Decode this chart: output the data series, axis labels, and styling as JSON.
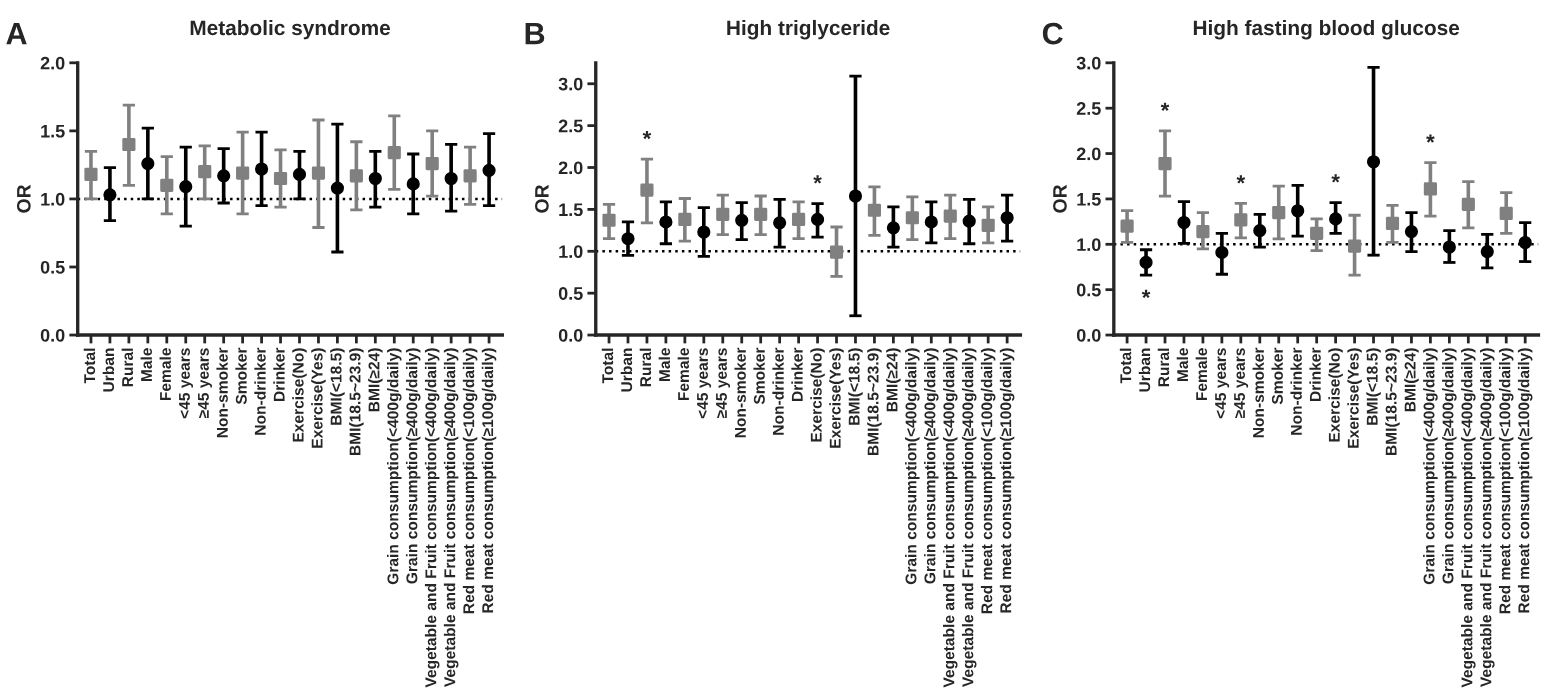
{
  "chart_data": [
    {
      "type": "scatter",
      "title": "Metabolic syndrome",
      "ylabel": "OR",
      "annotations": [
        "A"
      ],
      "categories": [
        "Total",
        "Urban",
        "Rural",
        "Male",
        "Female",
        "<45 years",
        "≥45 years",
        "Non-smoker",
        "Smoker",
        "Non-drinker",
        "Drinker",
        "Exercise(No)",
        "Exercise(Yes)",
        "BMI(<18.5)",
        "BMI(18.5~23.9)",
        "BMI(≥24)",
        "Grain consumption(<400g/daily)",
        "Grain consumption(≥400g/daily)",
        "Vegetable and Fruit consumption(<400g/daily)",
        "Vegetable and Fruit consumption(≥400g/daily)",
        "Red meat consumption(<100g/daily)",
        "Red meat consumption(≥100g/daily)"
      ],
      "series": [
        {
          "color": "#808080",
          "marker": "square",
          "values": [
            1.18,
            null,
            1.4,
            null,
            1.1,
            null,
            1.2,
            null,
            1.19,
            null,
            1.15,
            null,
            1.19,
            null,
            1.17,
            null,
            1.34,
            null,
            1.26,
            null,
            1.17,
            null
          ],
          "errors": [
            [
              1.0,
              1.35
            ],
            null,
            [
              1.1,
              1.69
            ],
            null,
            [
              0.89,
              1.31
            ],
            null,
            [
              1.0,
              1.39
            ],
            null,
            [
              0.89,
              1.49
            ],
            null,
            [
              0.94,
              1.36
            ],
            null,
            [
              0.79,
              1.58
            ],
            null,
            [
              0.92,
              1.42
            ],
            null,
            [
              1.07,
              1.61
            ],
            null,
            [
              1.02,
              1.5
            ],
            null,
            [
              0.96,
              1.38
            ],
            null
          ]
        },
        {
          "color": "#000000",
          "marker": "circle",
          "values": [
            null,
            1.03,
            null,
            1.26,
            null,
            1.09,
            null,
            1.17,
            null,
            1.22,
            null,
            1.18,
            null,
            1.08,
            null,
            1.15,
            null,
            1.11,
            null,
            1.15,
            null,
            1.21
          ],
          "errors": [
            null,
            [
              0.84,
              1.23
            ],
            null,
            [
              1.0,
              1.52
            ],
            null,
            [
              0.8,
              1.38
            ],
            null,
            [
              0.97,
              1.37
            ],
            null,
            [
              0.95,
              1.49
            ],
            null,
            [
              1.0,
              1.35
            ],
            null,
            [
              0.61,
              1.55
            ],
            null,
            [
              0.94,
              1.35
            ],
            null,
            [
              0.89,
              1.33
            ],
            null,
            [
              0.91,
              1.4
            ],
            null,
            [
              0.95,
              1.48
            ]
          ]
        }
      ],
      "ylim": [
        0,
        2
      ],
      "yticks": [
        {
          "value": 0,
          "label": "0.0"
        },
        {
          "value": 0.5,
          "label": "0.5"
        },
        {
          "value": 1,
          "label": "1.0"
        },
        {
          "value": 1.5,
          "label": "1.5"
        },
        {
          "value": 2,
          "label": "2.0"
        }
      ],
      "ref_lines": [
        {
          "axis": "y",
          "value": 1,
          "line_style": "dotted",
          "color": "#000000"
        }
      ],
      "grid": false
    },
    {
      "type": "scatter",
      "title": "High triglyceride",
      "ylabel": "OR",
      "annotations": [
        "B"
      ],
      "categories": [
        "Total",
        "Urban",
        "Rural",
        "Male",
        "Female",
        "<45 years",
        "≥45 years",
        "Non-smoker",
        "Smoker",
        "Non-drinker",
        "Drinker",
        "Exercise(No)",
        "Exercise(Yes)",
        "BMI(<18.5)",
        "BMI(18.5~23.9)",
        "BMI(≥24)",
        "Grain consumption(<400g/daily)",
        "Grain consumption(≥400g/daily)",
        "Vegetable and Fruit consumption(<400g/daily)",
        "Vegetable and Fruit consumption(≥400g/daily)",
        "Red meat consumption(<100g/daily)",
        "Red meat consumption(≥100g/daily)"
      ],
      "series": [
        {
          "color": "#808080",
          "marker": "square",
          "value_labels": [
            null,
            null,
            "*",
            null,
            null,
            null,
            null,
            null,
            null,
            null,
            null,
            null,
            null,
            null,
            null,
            null,
            null,
            null,
            null,
            null,
            null,
            null
          ],
          "values": [
            1.37,
            null,
            1.73,
            null,
            1.38,
            null,
            1.44,
            null,
            1.44,
            null,
            1.38,
            null,
            0.99,
            null,
            1.49,
            null,
            1.4,
            null,
            1.42,
            null,
            1.31,
            null
          ],
          "errors": [
            [
              1.15,
              1.56
            ],
            null,
            [
              1.34,
              2.1
            ],
            null,
            [
              1.12,
              1.63
            ],
            null,
            [
              1.2,
              1.67
            ],
            null,
            [
              1.2,
              1.66
            ],
            null,
            [
              1.15,
              1.59
            ],
            null,
            [
              0.7,
              1.29
            ],
            null,
            [
              1.19,
              1.77
            ],
            null,
            [
              1.14,
              1.65
            ],
            null,
            [
              1.15,
              1.67
            ],
            null,
            [
              1.1,
              1.53
            ],
            null
          ]
        },
        {
          "color": "#000000",
          "marker": "circle",
          "value_labels": [
            null,
            null,
            null,
            null,
            null,
            null,
            null,
            null,
            null,
            null,
            null,
            "*",
            null,
            null,
            null,
            null,
            null,
            null,
            null,
            null,
            null,
            null
          ],
          "values": [
            null,
            1.15,
            null,
            1.35,
            null,
            1.23,
            null,
            1.37,
            null,
            1.34,
            null,
            1.38,
            null,
            1.66,
            null,
            1.28,
            null,
            1.35,
            null,
            1.36,
            null,
            1.4
          ],
          "errors": [
            null,
            [
              0.95,
              1.35
            ],
            null,
            [
              1.09,
              1.59
            ],
            null,
            [
              0.94,
              1.52
            ],
            null,
            [
              1.14,
              1.58
            ],
            null,
            [
              1.05,
              1.62
            ],
            null,
            [
              1.17,
              1.57
            ],
            null,
            [
              0.23,
              3.09
            ],
            null,
            [
              1.05,
              1.53
            ],
            null,
            [
              1.1,
              1.59
            ],
            null,
            [
              1.09,
              1.62
            ],
            null,
            [
              1.12,
              1.67
            ]
          ]
        }
      ],
      "ylim": [
        0,
        3.25
      ],
      "yticks": [
        {
          "value": 0,
          "label": "0.0"
        },
        {
          "value": 0.5,
          "label": "0.5"
        },
        {
          "value": 1,
          "label": "1.0"
        },
        {
          "value": 1.5,
          "label": "1.5"
        },
        {
          "value": 2,
          "label": "2.0"
        },
        {
          "value": 2.5,
          "label": "2.5"
        },
        {
          "value": 3,
          "label": "3.0"
        }
      ],
      "ref_lines": [
        {
          "axis": "y",
          "value": 1,
          "line_style": "dotted",
          "color": "#000000"
        }
      ],
      "grid": false
    },
    {
      "type": "scatter",
      "title": "High fasting blood glucose",
      "ylabel": "OR",
      "annotations": [
        "C"
      ],
      "categories": [
        "Total",
        "Urban",
        "Rural",
        "Male",
        "Female",
        "<45 years",
        "≥45 years",
        "Non-smoker",
        "Smoker",
        "Non-drinker",
        "Drinker",
        "Exercise(No)",
        "Exercise(Yes)",
        "BMI(<18.5)",
        "BMI(18.5~23.9)",
        "BMI(≥24)",
        "Grain consumption(<400g/daily)",
        "Grain consumption(≥400g/daily)",
        "Vegetable and Fruit consumption(<400g/daily)",
        "Vegetable and Fruit consumption(≥400g/daily)",
        "Red meat consumption(<100g/daily)",
        "Red meat consumption(≥100g/daily)"
      ],
      "series": [
        {
          "color": "#808080",
          "marker": "square",
          "value_labels": [
            null,
            null,
            "*",
            null,
            null,
            null,
            "*",
            null,
            null,
            null,
            null,
            null,
            null,
            null,
            null,
            null,
            "*",
            null,
            null,
            null,
            null,
            null
          ],
          "values": [
            1.2,
            null,
            1.89,
            null,
            1.14,
            null,
            1.27,
            null,
            1.35,
            null,
            1.12,
            null,
            0.98,
            null,
            1.23,
            null,
            1.61,
            null,
            1.44,
            null,
            1.34,
            null
          ],
          "errors": [
            [
              1.02,
              1.37
            ],
            null,
            [
              1.53,
              2.25
            ],
            null,
            [
              0.95,
              1.35
            ],
            null,
            [
              1.07,
              1.45
            ],
            null,
            [
              1.06,
              1.64
            ],
            null,
            [
              0.93,
              1.28
            ],
            null,
            [
              0.66,
              1.32
            ],
            null,
            [
              1.02,
              1.43
            ],
            null,
            [
              1.31,
              1.9
            ],
            null,
            [
              1.18,
              1.69
            ],
            null,
            [
              1.12,
              1.57
            ],
            null
          ]
        },
        {
          "color": "#000000",
          "marker": "circle",
          "value_labels": [
            null,
            "*",
            null,
            null,
            null,
            null,
            null,
            null,
            null,
            null,
            null,
            "*",
            null,
            null,
            null,
            null,
            null,
            null,
            null,
            null,
            null,
            null
          ],
          "values": [
            null,
            0.8,
            null,
            1.24,
            null,
            0.91,
            null,
            1.15,
            null,
            1.37,
            null,
            1.28,
            null,
            1.91,
            null,
            1.14,
            null,
            0.97,
            null,
            0.92,
            null,
            1.02
          ],
          "errors": [
            null,
            [
              0.66,
              0.94
            ],
            null,
            [
              1.01,
              1.47
            ],
            null,
            [
              0.67,
              1.12
            ],
            null,
            [
              0.97,
              1.33
            ],
            null,
            [
              1.09,
              1.65
            ],
            null,
            [
              1.12,
              1.46
            ],
            null,
            [
              0.88,
              2.95
            ],
            null,
            [
              0.92,
              1.35
            ],
            null,
            [
              0.8,
              1.15
            ],
            null,
            [
              0.74,
              1.11
            ],
            null,
            [
              0.81,
              1.24
            ]
          ]
        }
      ],
      "ylim": [
        0,
        3
      ],
      "yticks": [
        {
          "value": 0,
          "label": "0.0"
        },
        {
          "value": 0.5,
          "label": "0.5"
        },
        {
          "value": 1,
          "label": "1.0"
        },
        {
          "value": 1.5,
          "label": "1.5"
        },
        {
          "value": 2,
          "label": "2.0"
        },
        {
          "value": 2.5,
          "label": "2.5"
        },
        {
          "value": 3,
          "label": "3.0"
        }
      ],
      "ref_lines": [
        {
          "axis": "y",
          "value": 1,
          "line_style": "dotted",
          "color": "#000000"
        }
      ],
      "grid": false
    }
  ]
}
